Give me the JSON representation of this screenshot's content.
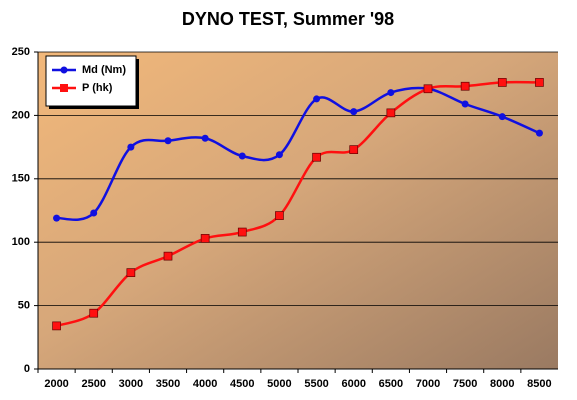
{
  "chart_data": {
    "type": "line",
    "title": "DYNO TEST, Summer '98",
    "categories": [
      "2000",
      "2500",
      "3000",
      "3500",
      "4000",
      "4500",
      "5000",
      "5500",
      "6000",
      "6500",
      "7000",
      "7500",
      "8000",
      "8500"
    ],
    "series": [
      {
        "name": "Md (Nm)",
        "color": "#1010e0",
        "marker": "circle",
        "values": [
          119,
          123,
          175,
          180,
          182,
          168,
          169,
          213,
          203,
          218,
          221,
          209,
          199,
          186
        ]
      },
      {
        "name": "P (hk)",
        "color": "#ff1010",
        "marker": "square",
        "values": [
          34,
          44,
          76,
          89,
          103,
          108,
          121,
          167,
          173,
          202,
          221,
          223,
          226,
          226
        ]
      }
    ],
    "ylim": [
      0,
      250
    ],
    "yticks": [
      0,
      50,
      100,
      150,
      200,
      250
    ],
    "grid": true,
    "legend": "upper left"
  }
}
